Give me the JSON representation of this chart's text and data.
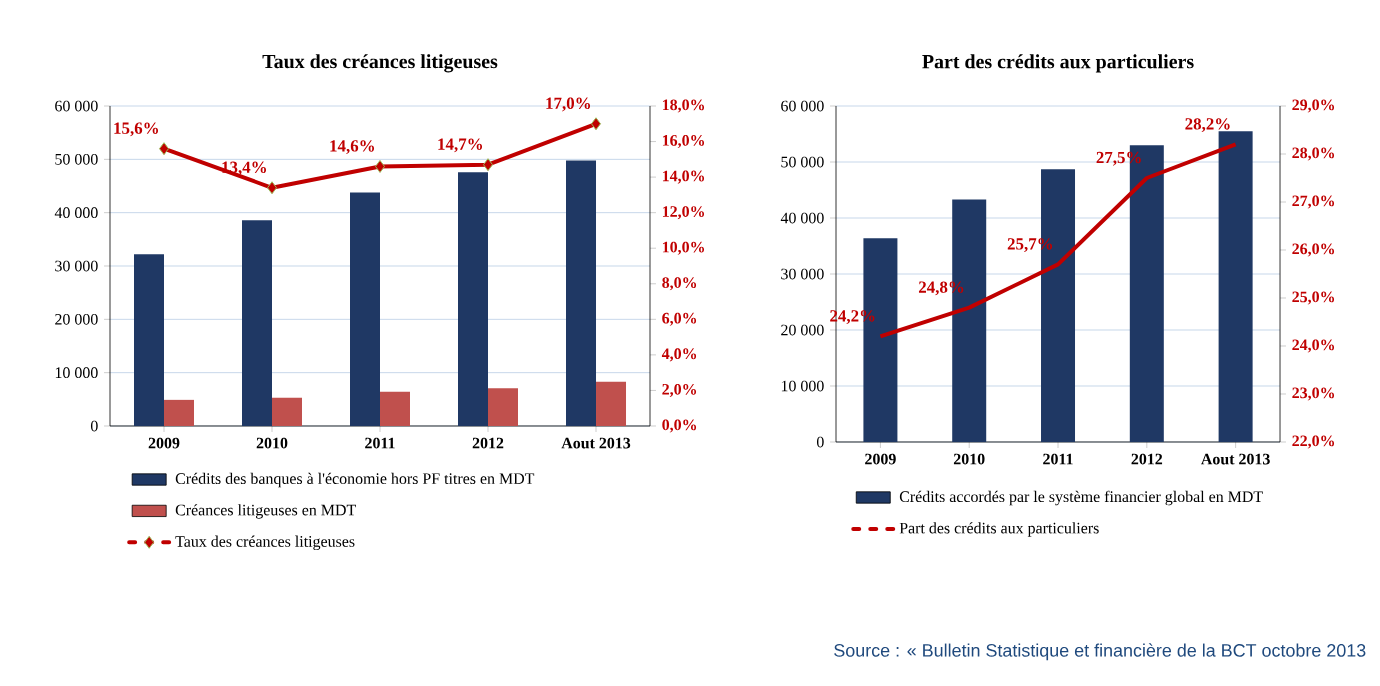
{
  "chart_data": [
    {
      "type": "bar",
      "title": "Taux des créances litigeuses",
      "categories": [
        "2009",
        "2010",
        "2011",
        "2012",
        "Aout 2013"
      ],
      "series": [
        {
          "name": "Crédits des banques à l'économie hors PF titres en MDT",
          "color": "#1f3864",
          "values": [
            32200,
            38600,
            43800,
            47600,
            49800
          ]
        },
        {
          "name": "Créances litigeuses en MDT",
          "color": "#c0504d",
          "values": [
            4900,
            5300,
            6400,
            7100,
            8300
          ]
        },
        {
          "name": "Taux des créances litigeuses",
          "type": "line",
          "axis": "y2",
          "color": "#c00000",
          "values": [
            15.6,
            13.4,
            14.6,
            14.7,
            17.0
          ],
          "value_labels": [
            "15,6%",
            "13,4%",
            "14,6%",
            "14,7%",
            "17,0%"
          ]
        }
      ],
      "ylim": [
        0,
        60000
      ],
      "yticks": [
        0,
        {
          "value": 10000,
          "label": "10 000"
        },
        {
          "value": 20000,
          "label": "20 000"
        },
        {
          "value": 30000,
          "label": "30 000"
        },
        {
          "value": 40000,
          "label": "40 000"
        },
        {
          "value": 50000,
          "label": "50 000"
        },
        {
          "value": 60000,
          "label": "60 000"
        }
      ],
      "y2lim": [
        0,
        18
      ],
      "y2ticks": [
        {
          "value": 0,
          "label": "0,0%"
        },
        {
          "value": 2,
          "label": "2,0%"
        },
        {
          "value": 4,
          "label": "4,0%"
        },
        {
          "value": 6,
          "label": "6,0%"
        },
        {
          "value": 8,
          "label": "8,0%"
        },
        {
          "value": 10,
          "label": "10,0%"
        },
        {
          "value": 12,
          "label": "12,0%"
        },
        {
          "value": 14,
          "label": "14,0%"
        },
        {
          "value": 16,
          "label": "16,0%"
        },
        {
          "value": 18,
          "label": "18,0%"
        }
      ],
      "grid": "y",
      "legend": "bottom",
      "marker": "diamond"
    },
    {
      "type": "bar",
      "title": "Part des crédits aux particuliers",
      "categories": [
        "2009",
        "2010",
        "2011",
        "2012",
        "Aout 2013"
      ],
      "series": [
        {
          "name": "Crédits accordés par le système financier global en MDT",
          "color": "#1f3864",
          "values": [
            36400,
            43300,
            48700,
            53000,
            55500
          ]
        },
        {
          "name": "Part des crédits aux particuliers",
          "type": "line",
          "axis": "y2",
          "color": "#c00000",
          "values": [
            24.2,
            24.8,
            25.7,
            27.5,
            28.2
          ],
          "value_labels": [
            "24,2%",
            "24,8%",
            "25,7%",
            "27,5%",
            "28,2%"
          ]
        }
      ],
      "ylim": [
        0,
        60000
      ],
      "yticks": [
        0,
        {
          "value": 10000,
          "label": "10 000"
        },
        {
          "value": 20000,
          "label": "20 000"
        },
        {
          "value": 30000,
          "label": "30 000"
        },
        {
          "value": 40000,
          "label": "40 000"
        },
        {
          "value": 50000,
          "label": "50 000"
        },
        {
          "value": 60000,
          "label": "60 000"
        }
      ],
      "y2lim": [
        22,
        29
      ],
      "y2ticks": [
        {
          "value": 22,
          "label": "22,0%"
        },
        {
          "value": 23,
          "label": "23,0%"
        },
        {
          "value": 24,
          "label": "24,0%"
        },
        {
          "value": 25,
          "label": "25,0%"
        },
        {
          "value": 26,
          "label": "26,0%"
        },
        {
          "value": 27,
          "label": "27,0%"
        },
        {
          "value": 28,
          "label": "28,0%"
        },
        {
          "value": 29,
          "label": "29,0%"
        }
      ],
      "grid": "y",
      "legend": "bottom",
      "annotations": [
        "Source : « Bulletin Statistique et financière de la BCT octobre 2013"
      ]
    }
  ]
}
